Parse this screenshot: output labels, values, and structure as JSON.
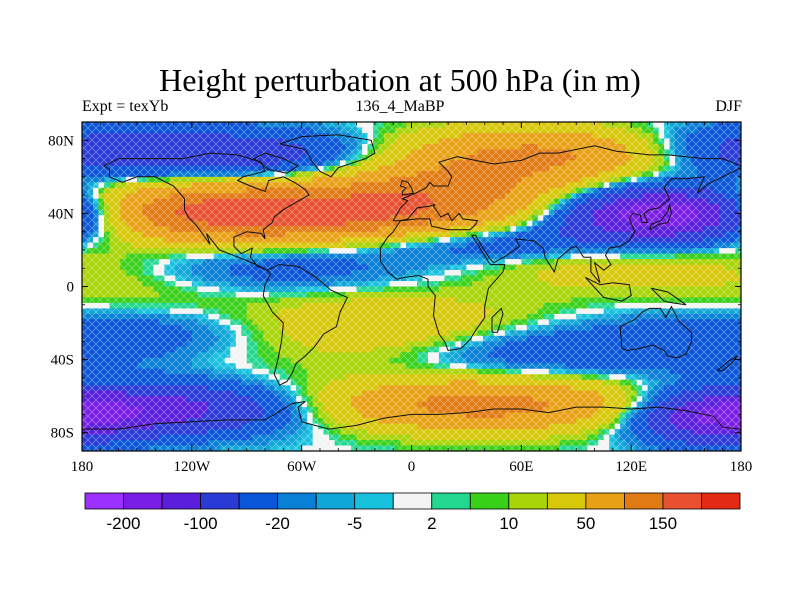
{
  "title": "Height perturbation at 500 hPa (in m)",
  "subtitle_left": "Expt = texYb",
  "subtitle_center": "136_4_MaBP",
  "subtitle_right": "DJF",
  "x_ticks": [
    "180",
    "120W",
    "60W",
    "0",
    "60E",
    "120E",
    "180"
  ],
  "x_tick_values": [
    -180,
    -120,
    -60,
    0,
    60,
    120,
    180
  ],
  "y_ticks": [
    "80N",
    "40N",
    "0",
    "40S",
    "80S"
  ],
  "y_tick_values": [
    80,
    40,
    0,
    -40,
    -80
  ],
  "lon_range": [
    -180,
    180
  ],
  "lat_range": [
    -90,
    90
  ],
  "colorbar": {
    "colors": [
      "#9b30ff",
      "#7a1ee6",
      "#5a1edc",
      "#2a3ad6",
      "#0a55d8",
      "#0a7fd6",
      "#10a6d8",
      "#18c2de",
      "#f4f4f4",
      "#22d890",
      "#38d018",
      "#a8d408",
      "#d8c80a",
      "#e8a014",
      "#e27a14",
      "#e85030",
      "#e52a14"
    ],
    "labels": [
      "-200",
      "-100",
      "-20",
      "-5",
      "2",
      "10",
      "50",
      "150"
    ],
    "label_after_box_index": [
      0,
      2,
      4,
      6,
      8,
      10,
      12,
      14
    ]
  },
  "map_data": {
    "type": "filled-contour",
    "variable": "Height perturbation at 500 hPa",
    "units": "m",
    "season": "DJF",
    "features": [
      {
        "region": "North Atlantic / Europe 40N",
        "level": "positive",
        "approx_value": 100
      },
      {
        "region": "North Pacific 40N",
        "level": "positive",
        "approx_value": 100
      },
      {
        "region": "East Asia / NW Pacific 40N",
        "level": "negative",
        "approx_value": -150
      },
      {
        "region": "Arctic 60-80N over Canada and Siberia",
        "level": "negative",
        "approx_value": -50
      },
      {
        "region": "Southern Ocean 60-70S Pacific",
        "level": "negative",
        "approx_value": -50
      },
      {
        "region": "Antarctica 70-80S Atlantic/Indian",
        "level": "positive",
        "approx_value": 100
      },
      {
        "region": "Southern mid-latitudes 40S Indian Ocean",
        "level": "negative",
        "approx_value": -30
      }
    ]
  }
}
